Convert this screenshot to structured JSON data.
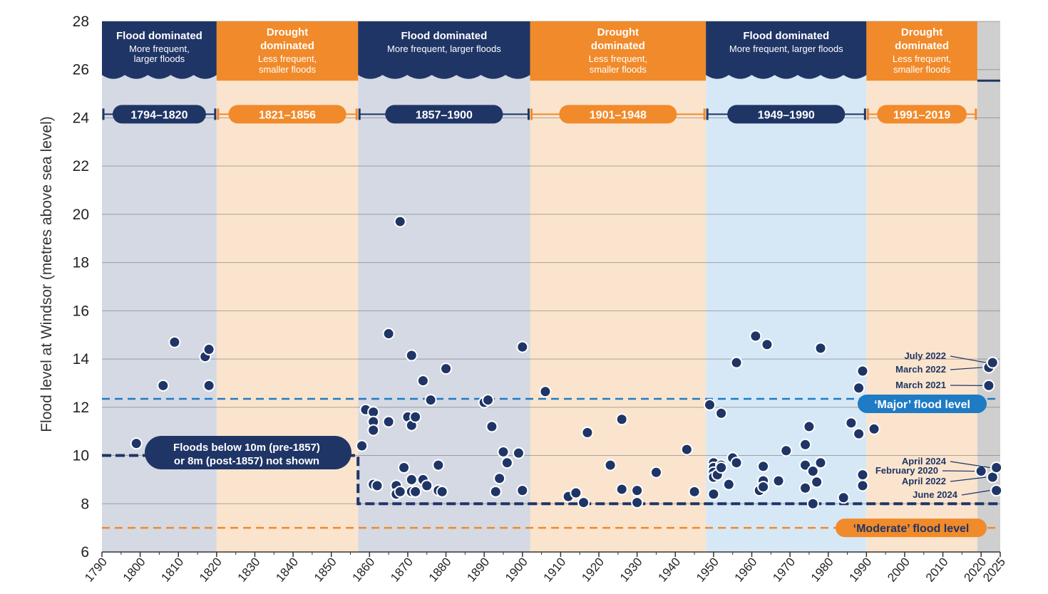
{
  "colors": {
    "navy": "#1f3566",
    "orange": "#f18a2a",
    "flood_bg": "#d4d9e4",
    "drought_bg": "#fbe4cd",
    "flood_bg_light": "#d6e8f6",
    "recent_bg": "#cfcfcf",
    "major_line": "#1e7bc4",
    "moderate_line": "#f18a2a"
  },
  "chart_data": {
    "type": "scatter",
    "title": "",
    "ylabel": "Flood level at Windsor (metres  above sea level)",
    "xlabel": "",
    "xlim": [
      1790,
      2025
    ],
    "ylim": [
      6,
      28
    ],
    "yticks": [
      "6",
      "8",
      "10",
      "12",
      "14",
      "16",
      "18",
      "20",
      "22",
      "24",
      "26",
      "28"
    ],
    "xticks": [
      "1790",
      "1800",
      "1810",
      "1820",
      "1830",
      "1840",
      "1850",
      "1860",
      "1870",
      "1880",
      "1890",
      "1900",
      "1910",
      "1920",
      "1930",
      "1940",
      "1950",
      "1960",
      "1970",
      "1980",
      "1990",
      "2000",
      "2010",
      "2020",
      "2025"
    ],
    "eras": [
      {
        "start": 1790,
        "end": 1820,
        "kind": "flood",
        "title": "Flood dominated",
        "sub1": "More frequent,",
        "sub2": "larger floods",
        "period": "1794–1820"
      },
      {
        "start": 1820,
        "end": 1857,
        "kind": "drought",
        "title": "Drought",
        "title2": "dominated",
        "sub1": "Less frequent,",
        "sub2": "smaller floods",
        "period": "1821–1856"
      },
      {
        "start": 1857,
        "end": 1902,
        "kind": "flood",
        "title": "Flood dominated",
        "sub1": "More frequent, larger floods",
        "sub2": "",
        "period": "1857–1900"
      },
      {
        "start": 1902,
        "end": 1948,
        "kind": "drought",
        "title": "Drought",
        "title2": "dominated",
        "sub1": "Less frequent,",
        "sub2": "smaller floods",
        "period": "1901–1948"
      },
      {
        "start": 1948,
        "end": 1990,
        "kind": "flood-light",
        "title": "Flood dominated",
        "sub1": "More frequent, larger floods",
        "sub2": "",
        "period": "1949–1990"
      },
      {
        "start": 1990,
        "end": 2019,
        "kind": "drought",
        "title": "Drought",
        "title2": "dominated",
        "sub1": "Less frequent,",
        "sub2": "smaller floods",
        "period": "1991–2019"
      },
      {
        "start": 2019,
        "end": 2025,
        "kind": "recent"
      }
    ],
    "thresholds": [
      {
        "name": "major",
        "label": "‘Major’ flood level",
        "value": 12.35
      },
      {
        "name": "moderate",
        "label": "‘Moderate’ flood level",
        "value": 7.0
      }
    ],
    "not_shown_note": [
      "Floods below 10m (pre-1857)",
      "or 8m (post-1857) not shown"
    ],
    "cutoff": [
      {
        "x1": 1790,
        "x2": 1857,
        "y": 10
      },
      {
        "x1": 1857,
        "x2": 2025,
        "y": 8
      }
    ],
    "series": [
      {
        "name": "Floods",
        "points": [
          [
            1799,
            10.5
          ],
          [
            1806,
            12.9
          ],
          [
            1809,
            14.7
          ],
          [
            1817,
            14.1
          ],
          [
            1818,
            14.4
          ],
          [
            1818,
            12.9
          ],
          [
            1858,
            10.4
          ],
          [
            1859,
            11.9
          ],
          [
            1861,
            11.8
          ],
          [
            1861,
            11.4
          ],
          [
            1861,
            11.05
          ],
          [
            1861,
            8.8
          ],
          [
            1862,
            8.75
          ],
          [
            1865,
            15.05
          ],
          [
            1865,
            11.4
          ],
          [
            1867,
            8.75
          ],
          [
            1867,
            8.4
          ],
          [
            1868,
            19.7
          ],
          [
            1868,
            8.5
          ],
          [
            1869,
            9.5
          ],
          [
            1870,
            11.6
          ],
          [
            1871,
            14.15
          ],
          [
            1871,
            11.25
          ],
          [
            1871,
            9.0
          ],
          [
            1871,
            8.5
          ],
          [
            1872,
            11.6
          ],
          [
            1872,
            8.5
          ],
          [
            1874,
            13.1
          ],
          [
            1874,
            9.0
          ],
          [
            1875,
            8.75
          ],
          [
            1876,
            12.3
          ],
          [
            1878,
            9.6
          ],
          [
            1878,
            8.55
          ],
          [
            1879,
            8.5
          ],
          [
            1880,
            13.6
          ],
          [
            1890,
            12.2
          ],
          [
            1891,
            12.3
          ],
          [
            1892,
            11.2
          ],
          [
            1893,
            8.5
          ],
          [
            1894,
            9.05
          ],
          [
            1895,
            10.15
          ],
          [
            1896,
            9.7
          ],
          [
            1899,
            10.1
          ],
          [
            1900,
            14.5
          ],
          [
            1900,
            8.55
          ],
          [
            1906,
            12.65
          ],
          [
            1912,
            8.3
          ],
          [
            1914,
            8.45
          ],
          [
            1916,
            8.05
          ],
          [
            1917,
            10.95
          ],
          [
            1923,
            9.6
          ],
          [
            1926,
            11.5
          ],
          [
            1926,
            8.6
          ],
          [
            1930,
            8.55
          ],
          [
            1930,
            8.05
          ],
          [
            1935,
            9.3
          ],
          [
            1943,
            10.25
          ],
          [
            1945,
            8.5
          ],
          [
            1949,
            12.1
          ],
          [
            1950,
            9.7
          ],
          [
            1950,
            9.5
          ],
          [
            1950,
            9.3
          ],
          [
            1950,
            9.1
          ],
          [
            1950,
            8.4
          ],
          [
            1951,
            9.2
          ],
          [
            1952,
            11.75
          ],
          [
            1952,
            9.6
          ],
          [
            1952,
            9.5
          ],
          [
            1954,
            8.8
          ],
          [
            1955,
            9.9
          ],
          [
            1956,
            13.85
          ],
          [
            1956,
            9.7
          ],
          [
            1961,
            14.95
          ],
          [
            1962,
            8.55
          ],
          [
            1963,
            9.55
          ],
          [
            1963,
            8.95
          ],
          [
            1963,
            8.7
          ],
          [
            1964,
            14.6
          ],
          [
            1967,
            8.95
          ],
          [
            1969,
            10.2
          ],
          [
            1974,
            10.45
          ],
          [
            1974,
            9.6
          ],
          [
            1974,
            8.65
          ],
          [
            1975,
            11.2
          ],
          [
            1976,
            9.35
          ],
          [
            1976,
            8.0
          ],
          [
            1977,
            8.9
          ],
          [
            1978,
            14.45
          ],
          [
            1978,
            9.7
          ],
          [
            1984,
            8.25
          ],
          [
            1986,
            11.35
          ],
          [
            1988,
            12.8
          ],
          [
            1988,
            10.9
          ],
          [
            1989,
            13.5
          ],
          [
            1989,
            9.2
          ],
          [
            1989,
            8.75
          ],
          [
            1992,
            11.1
          ],
          [
            2020,
            9.35
          ],
          [
            2022,
            13.65
          ],
          [
            2022,
            12.9
          ],
          [
            2023,
            13.85
          ],
          [
            2023,
            9.1
          ],
          [
            2024,
            9.5
          ],
          [
            2024,
            8.55
          ]
        ]
      }
    ],
    "annotations": [
      {
        "label": "July 2022",
        "year": 2023,
        "value": 13.85
      },
      {
        "label": "March 2022",
        "year": 2022,
        "value": 13.65
      },
      {
        "label": "March 2021",
        "year": 2022,
        "value": 12.9
      },
      {
        "label": "April 2024",
        "year": 2024,
        "value": 9.5
      },
      {
        "label": "February 2020",
        "year": 2020,
        "value": 9.35
      },
      {
        "label": "April 2022",
        "year": 2023,
        "value": 9.1
      },
      {
        "label": "June 2024",
        "year": 2024,
        "value": 8.55
      }
    ]
  }
}
